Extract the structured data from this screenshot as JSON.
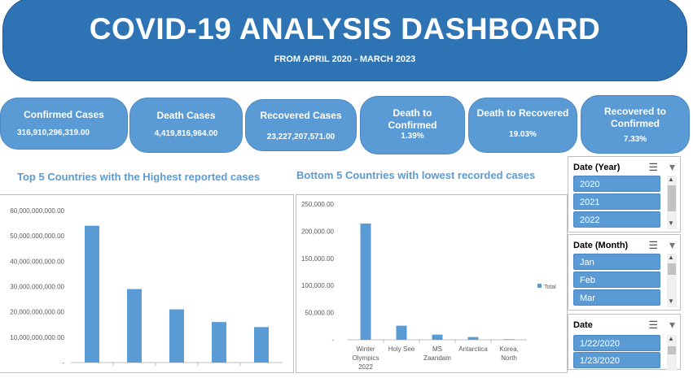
{
  "header": {
    "title": "COVID-19 ANALYSIS DASHBOARD",
    "subtitle": "FROM APRIL 2020 - MARCH 2023"
  },
  "kpis": [
    {
      "label": "Confirmed Cases",
      "value": "316,910,296,319.00"
    },
    {
      "label": "Death Cases",
      "value": "4,419,816,964.00"
    },
    {
      "label": "Recovered Cases",
      "value": "23,227,207,571.00"
    },
    {
      "label": "Death to Confirmed",
      "value": "1.39%"
    },
    {
      "label": "Death to Recovered",
      "value": "19.03%"
    },
    {
      "label": "Recovered to Confirmed",
      "value": "7.33%"
    }
  ],
  "sections": {
    "top5_title": "Top 5 Countries with the Highest reported cases",
    "bottom5_title": "Bottom 5 Countries with lowest recorded cases"
  },
  "chart_data": [
    {
      "type": "bar",
      "title": "Top 5 Countries with the Highest reported cases",
      "categories": [
        "",
        "",
        "",
        "",
        ""
      ],
      "values": [
        54000000000,
        29000000000,
        21000000000,
        16000000000,
        14000000000
      ],
      "ylim": [
        0,
        60000000000
      ],
      "yticks": [
        "-",
        "10,000,000,000.00",
        "20,000,000,000.00",
        "30,000,000,000.00",
        "40,000,000,000.00",
        "50,000,000,000.00",
        "60,000,000,000.00"
      ],
      "color": "#5b9bd5"
    },
    {
      "type": "bar",
      "title": "Bottom 5 Countries with lowest recorded cases",
      "categories": [
        "Winter Olympics 2022",
        "Holy See",
        "MS Zaandam",
        "Antarctica",
        "Korea, North"
      ],
      "values": [
        214000,
        26000,
        9500,
        5000,
        1000
      ],
      "ylim": [
        0,
        250000
      ],
      "yticks": [
        "-",
        "50,000.00",
        "100,000.00",
        "150,000.00",
        "200,000.00",
        "250,000.00"
      ],
      "legend": "Total",
      "color": "#5b9bd5"
    }
  ],
  "slicers": [
    {
      "title": "Date (Year)",
      "items": [
        "2020",
        "2021",
        "2022"
      ]
    },
    {
      "title": "Date (Month)",
      "items": [
        "Jan",
        "Feb",
        "Mar"
      ]
    },
    {
      "title": "Date",
      "items": [
        "1/22/2020",
        "1/23/2020"
      ]
    }
  ],
  "icons": {
    "multiselect": "multi-select-icon",
    "clear_filter": "clear-filter-icon"
  }
}
